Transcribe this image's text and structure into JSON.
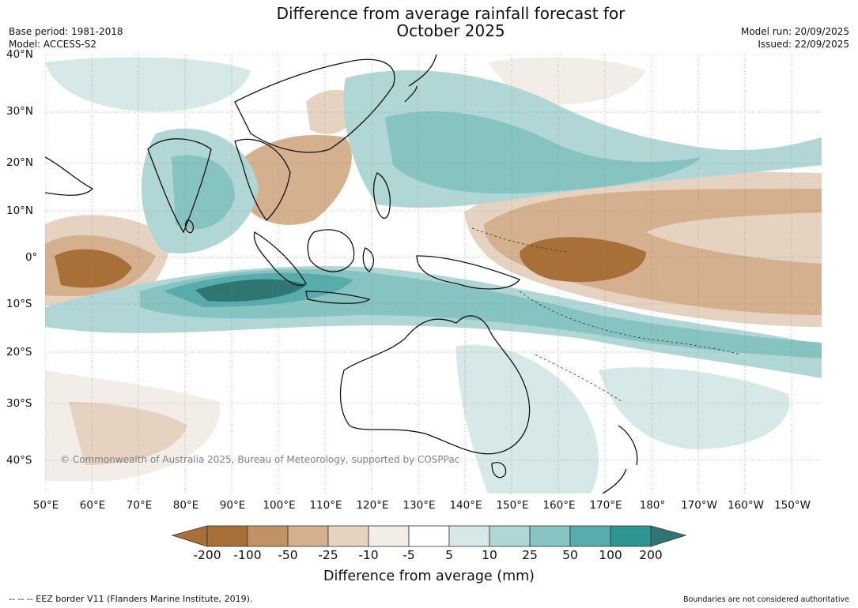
{
  "title": {
    "line1": "Difference from average rainfall forecast for",
    "line2": "October 2025"
  },
  "meta": {
    "base_period": "Base period: 1981-2018",
    "model": "Model: ACCESS-S2",
    "model_run": "Model run: 20/09/2025",
    "issued": "Issued: 22/09/2025"
  },
  "map": {
    "lat_labels": [
      "40°N",
      "30°N",
      "20°N",
      "10°N",
      "0°",
      "10°S",
      "20°S",
      "30°S",
      "40°S"
    ],
    "lon_labels": [
      "50°E",
      "60°E",
      "70°E",
      "80°E",
      "90°E",
      "100°E",
      "110°E",
      "120°E",
      "130°E",
      "140°E",
      "150°E",
      "160°E",
      "170°E",
      "180°",
      "170°W",
      "160°W",
      "150°W"
    ],
    "copyright": "© Commonwealth of Australia 2025, Bureau of Meteorology, supported by COSPPac"
  },
  "colorbar": {
    "label": "Difference from average (mm)",
    "ticks": [
      "-200",
      "-100",
      "-50",
      "-25",
      "-10",
      "-5",
      "5",
      "10",
      "25",
      "50",
      "100",
      "200"
    ],
    "colors": [
      "#a87038",
      "#a87038",
      "#c29366",
      "#d5b08e",
      "#e6d2c0",
      "#f2ede6",
      "#ffffff",
      "#d6e9e8",
      "#b0d7d6",
      "#86c3c1",
      "#58acab",
      "#2e9593",
      "#2e7674"
    ]
  },
  "footer": {
    "eez": "--  --  -- EEZ border V11 (Flanders Marine Institute, 2019).",
    "boundaries": "Boundaries are not considered authoritative"
  }
}
